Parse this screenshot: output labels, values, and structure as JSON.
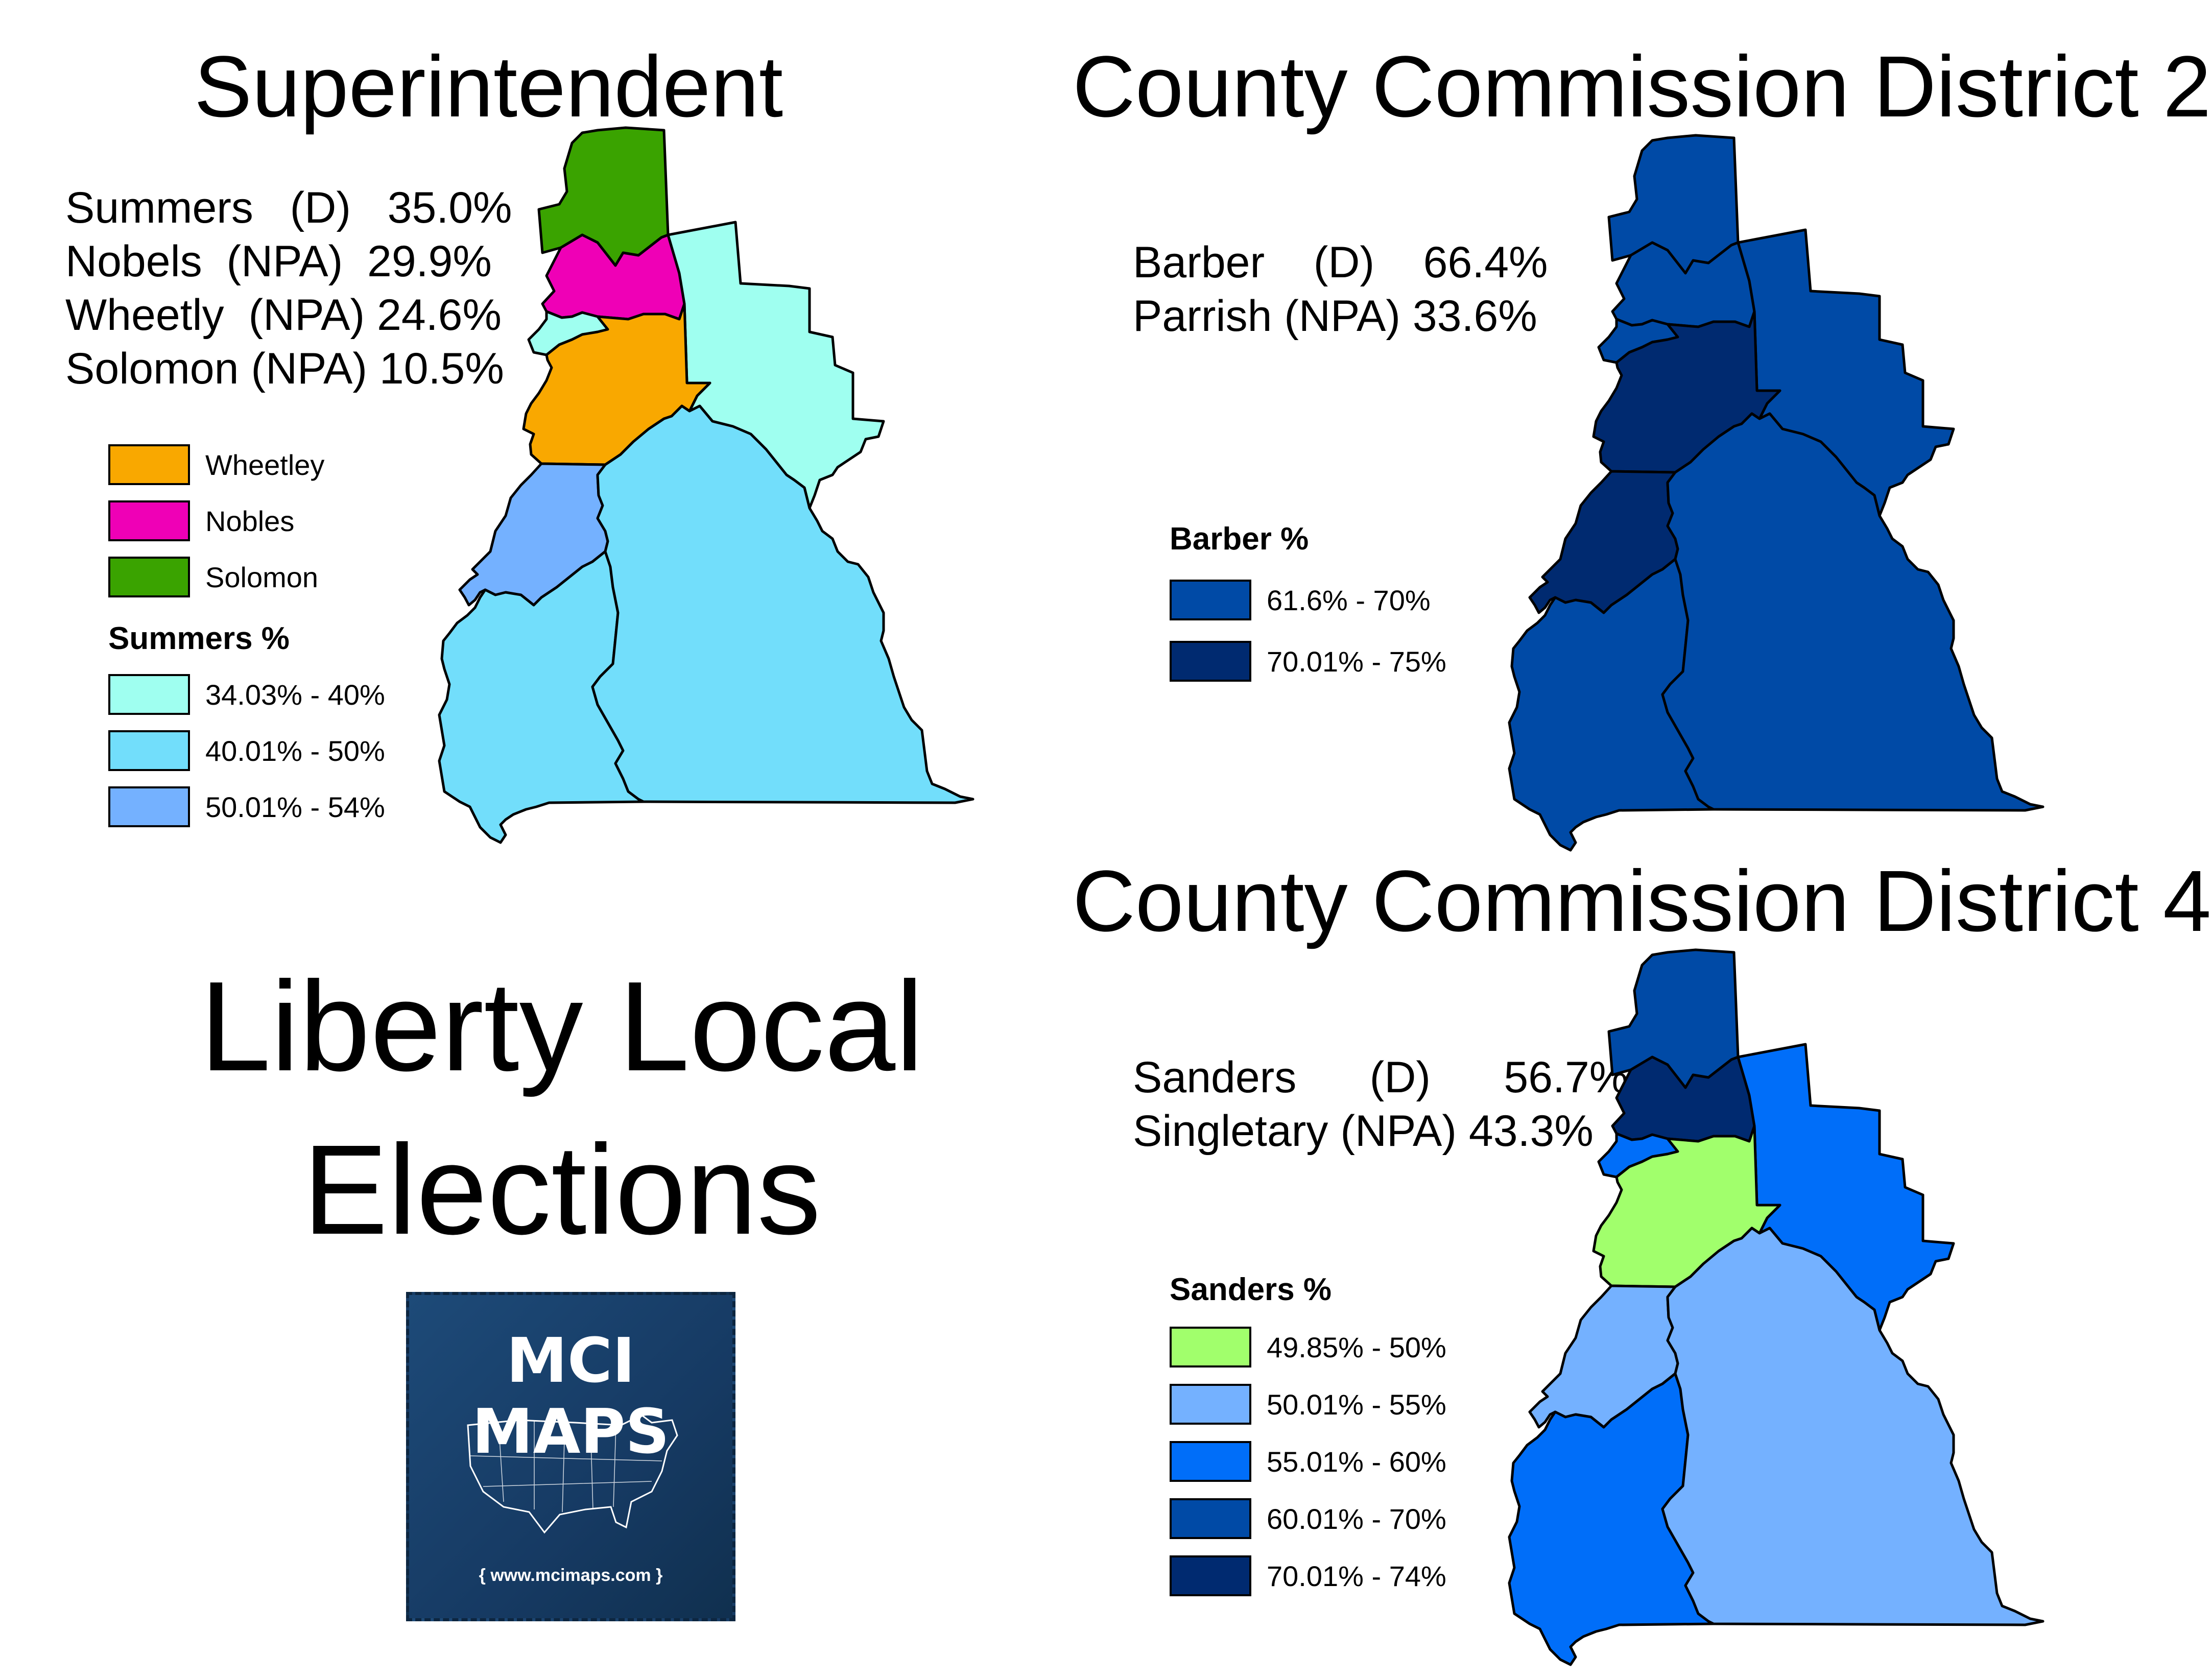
{
  "superintendent": {
    "title": "Superintendent",
    "results": [
      "Summers   (D)   35.0%",
      "Nobels  (NPA)  29.9%",
      "Wheetly  (NPA) 24.6%",
      "Solomon (NPA) 10.5%"
    ],
    "legend": {
      "candidates": [
        {
          "label": "Wheetley",
          "color": "#f9a800"
        },
        {
          "label": "Nobles",
          "color": "#ef00b6"
        },
        {
          "label": "Solomon",
          "color": "#3aa300"
        }
      ],
      "title": "Summers %",
      "items": [
        {
          "label": "34.03% - 40%",
          "color": "#9ffff0"
        },
        {
          "label": "40.01% - 50%",
          "color": "#72defb"
        },
        {
          "label": "50.01% - 54%",
          "color": "#74b1ff"
        }
      ]
    },
    "region_colors": {
      "north": "#3aa300",
      "upper_mid": "#ef00b6",
      "small_west": "#9ffff0",
      "northeast": "#9ffff0",
      "center": "#f9a800",
      "west": "#74b1ff",
      "south_west": "#72defb",
      "east": "#72defb"
    }
  },
  "district2": {
    "title": "County Commission District 2",
    "results": [
      "Barber    (D)    66.4%",
      "Parrish (NPA) 33.6%"
    ],
    "legend": {
      "title": "Barber %",
      "items": [
        {
          "label": "61.6% - 70%",
          "color": "#004aa6"
        },
        {
          "label": "70.01% - 75%",
          "color": "#002a70"
        }
      ]
    },
    "region_colors": {
      "north": "#004aa6",
      "upper_mid": "#004aa6",
      "small_west": "#004aa6",
      "northeast": "#004aa6",
      "center": "#002a70",
      "west": "#002a70",
      "south_west": "#004aa6",
      "east": "#004aa6"
    }
  },
  "district4": {
    "title": "County Commission District 4",
    "results": [
      "Sanders      (D)      56.7%",
      "Singletary (NPA) 43.3%"
    ],
    "legend": {
      "title": "Sanders %",
      "items": [
        {
          "label": "49.85% - 50%",
          "color": "#a1ff6c"
        },
        {
          "label": "50.01% - 55%",
          "color": "#74b1ff"
        },
        {
          "label": "55.01% - 60%",
          "color": "#006ef9"
        },
        {
          "label": "60.01% - 70%",
          "color": "#004aa6"
        },
        {
          "label": "70.01% - 74%",
          "color": "#002a70"
        }
      ]
    },
    "region_colors": {
      "north": "#004aa6",
      "upper_mid": "#002a70",
      "small_west": "#006ef9",
      "northeast": "#006ef9",
      "center": "#a1ff6c",
      "west": "#74b1ff",
      "south_west": "#006ef9",
      "east": "#74b1ff"
    }
  },
  "main_title": {
    "line1": "Liberty Local",
    "line2": "Elections"
  },
  "logo": {
    "name": "MCI MAPS",
    "url": "{ www.mcimaps.com }"
  }
}
